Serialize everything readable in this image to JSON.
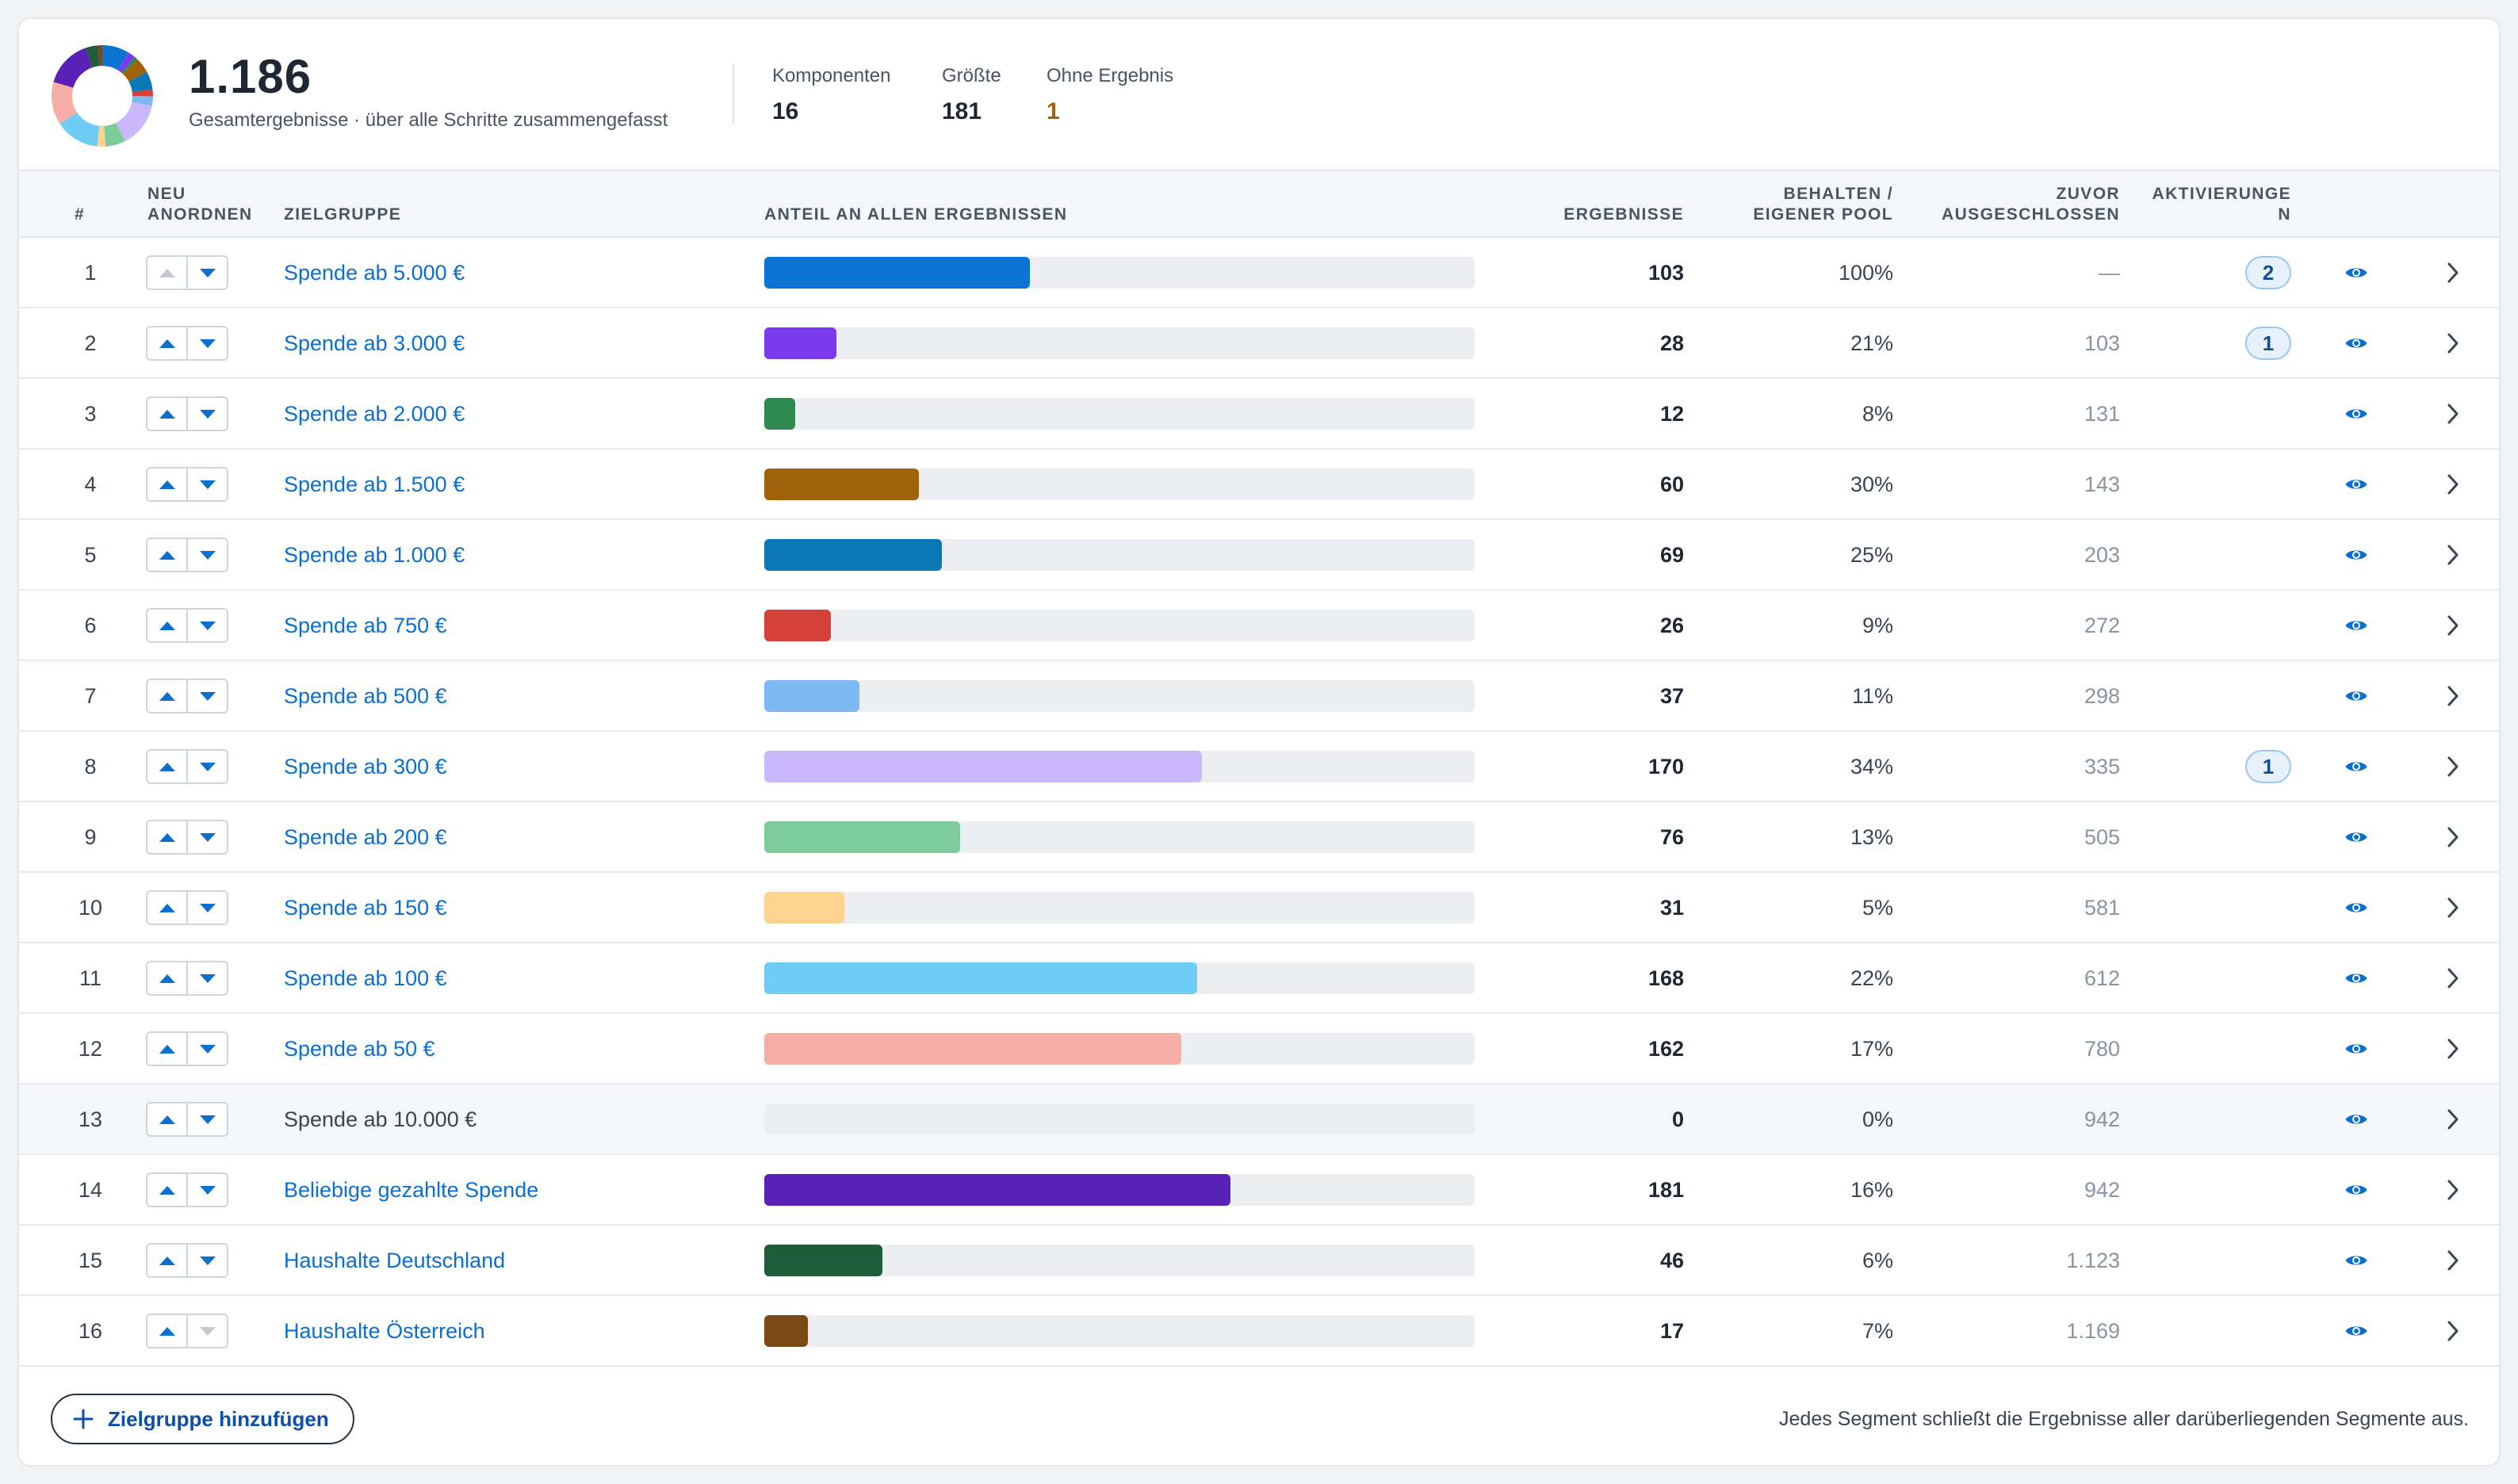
{
  "summary": {
    "total": "1.186",
    "caption": "Gesamtergebnisse · über alle Schritte zusammengefasst",
    "stats": [
      {
        "label": "Komponenten",
        "value": "16",
        "warn": false
      },
      {
        "label": "Größte",
        "value": "181",
        "warn": false
      },
      {
        "label": "Ohne Ergebnis",
        "value": "1",
        "warn": true
      }
    ]
  },
  "table": {
    "headers": {
      "num": "#",
      "reorder_1": "NEU",
      "reorder_2": "ANORDNEN",
      "audience": "ZIELGRUPPE",
      "share": "ANTEIL AN ALLEN ERGEBNISSEN",
      "results": "ERGEBNISSE",
      "kept_1": "BEHALTEN /",
      "kept_2": "EIGENER POOL",
      "excluded_1": "ZUVOR",
      "excluded_2": "AUSGESCHLOSSEN",
      "activations_1": "AKTIVIERUNGE",
      "activations_2": "N"
    },
    "rows": [
      {
        "num": "1",
        "name": "Spende ab 5.000 €",
        "results": "103",
        "results_value": 103,
        "kept": "100%",
        "previous": "—",
        "activations": "2",
        "color": "#0b73d1",
        "link": true,
        "up_disabled": true,
        "down_disabled": false
      },
      {
        "num": "2",
        "name": "Spende ab 3.000 €",
        "results": "28",
        "results_value": 28,
        "kept": "21%",
        "previous": "103",
        "activations": "1",
        "color": "#7c3aed",
        "link": true,
        "up_disabled": false,
        "down_disabled": false
      },
      {
        "num": "3",
        "name": "Spende ab 2.000 €",
        "results": "12",
        "results_value": 12,
        "kept": "8%",
        "previous": "131",
        "activations": "",
        "color": "#2f8a52",
        "link": true,
        "up_disabled": false,
        "down_disabled": false
      },
      {
        "num": "4",
        "name": "Spende ab 1.500 €",
        "results": "60",
        "results_value": 60,
        "kept": "30%",
        "previous": "143",
        "activations": "",
        "color": "#a0620c",
        "link": true,
        "up_disabled": false,
        "down_disabled": false
      },
      {
        "num": "5",
        "name": "Spende ab 1.000 €",
        "results": "69",
        "results_value": 69,
        "kept": "25%",
        "previous": "203",
        "activations": "",
        "color": "#0a78b4",
        "link": true,
        "up_disabled": false,
        "down_disabled": false
      },
      {
        "num": "6",
        "name": "Spende ab 750 €",
        "results": "26",
        "results_value": 26,
        "kept": "9%",
        "previous": "272",
        "activations": "",
        "color": "#d6403a",
        "link": true,
        "up_disabled": false,
        "down_disabled": false
      },
      {
        "num": "7",
        "name": "Spende ab 500 €",
        "results": "37",
        "results_value": 37,
        "kept": "11%",
        "previous": "298",
        "activations": "",
        "color": "#7db8f2",
        "link": true,
        "up_disabled": false,
        "down_disabled": false
      },
      {
        "num": "8",
        "name": "Spende ab 300 €",
        "results": "170",
        "results_value": 170,
        "kept": "34%",
        "previous": "335",
        "activations": "1",
        "color": "#c9b8fb",
        "link": true,
        "up_disabled": false,
        "down_disabled": false
      },
      {
        "num": "9",
        "name": "Spende ab 200 €",
        "results": "76",
        "results_value": 76,
        "kept": "13%",
        "previous": "505",
        "activations": "",
        "color": "#7ecb9a",
        "link": true,
        "up_disabled": false,
        "down_disabled": false
      },
      {
        "num": "10",
        "name": "Spende ab 150 €",
        "results": "31",
        "results_value": 31,
        "kept": "5%",
        "previous": "581",
        "activations": "",
        "color": "#fdd48f",
        "link": true,
        "up_disabled": false,
        "down_disabled": false
      },
      {
        "num": "11",
        "name": "Spende ab 100 €",
        "results": "168",
        "results_value": 168,
        "kept": "22%",
        "previous": "612",
        "activations": "",
        "color": "#6fcdf5",
        "link": true,
        "up_disabled": false,
        "down_disabled": false
      },
      {
        "num": "12",
        "name": "Spende ab 50 €",
        "results": "162",
        "results_value": 162,
        "kept": "17%",
        "previous": "780",
        "activations": "",
        "color": "#f4aea6",
        "link": true,
        "up_disabled": false,
        "down_disabled": false
      },
      {
        "num": "13",
        "name": "Spende ab 10.000 €",
        "results": "0",
        "results_value": 0,
        "kept": "0%",
        "previous": "942",
        "activations": "",
        "color": "#cccccc",
        "link": false,
        "up_disabled": false,
        "down_disabled": false
      },
      {
        "num": "14",
        "name": "Beliebige gezahlte Spende",
        "results": "181",
        "results_value": 181,
        "kept": "16%",
        "previous": "942",
        "activations": "",
        "color": "#5b21b6",
        "link": true,
        "up_disabled": false,
        "down_disabled": false
      },
      {
        "num": "15",
        "name": "Haushalte Deutschland",
        "results": "46",
        "results_value": 46,
        "kept": "6%",
        "previous": "1.123",
        "activations": "",
        "color": "#1f5c3a",
        "link": true,
        "up_disabled": false,
        "down_disabled": false
      },
      {
        "num": "16",
        "name": "Haushalte Österreich",
        "results": "17",
        "results_value": 17,
        "kept": "7%",
        "previous": "1.169",
        "activations": "",
        "color": "#7a4a16",
        "link": true,
        "up_disabled": false,
        "down_disabled": true
      }
    ],
    "bar_max": 1186
  },
  "icons": {
    "eye": "eye-icon",
    "chevron": "chevron-right-icon",
    "up": "triangle-up-icon",
    "down": "triangle-down-icon",
    "plus": "plus-icon"
  },
  "footer": {
    "add_label": "Zielgruppe hinzufügen",
    "note": "Jedes Segment schließt die Ergebnisse aller darüberliegenden Segmente aus."
  }
}
